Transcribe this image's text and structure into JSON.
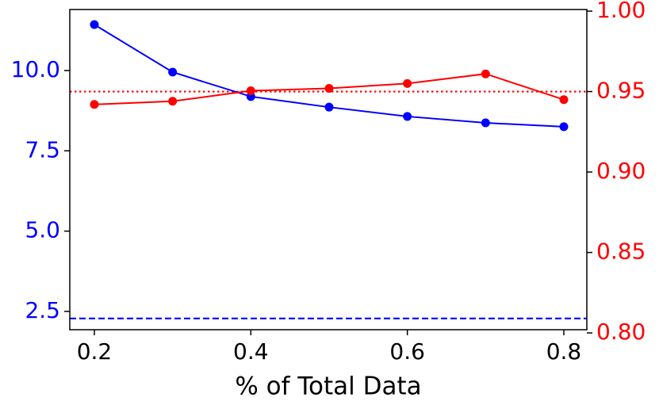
{
  "chart_data": {
    "type": "line",
    "xlabel": "% of Total Data",
    "x": [
      0.2,
      0.3,
      0.4,
      0.5,
      0.6,
      0.7,
      0.8
    ],
    "series": [
      {
        "color": "#0000ff",
        "values": [
          11.43,
          9.95,
          9.19,
          8.86,
          8.57,
          8.37,
          8.25
        ]
      },
      {
        "color": "#ff0000",
        "axis": "y2",
        "values": [
          0.942,
          0.944,
          0.9505,
          0.952,
          0.955,
          0.961,
          0.945
        ]
      }
    ],
    "reference_lines": [
      {
        "axis": "y",
        "value": 2.28,
        "color": "#0000ff",
        "style": "dashed"
      },
      {
        "axis": "y2",
        "value": 0.95,
        "color": "#ff0000",
        "style": "dotted"
      }
    ],
    "xlim": [
      0.1686,
      0.8294
    ],
    "xticks": [
      0.2,
      0.4,
      0.6,
      0.8
    ],
    "ylim": [
      1.93,
      11.9
    ],
    "yticks": [
      {
        "value": 2.5,
        "label": "2.5"
      },
      {
        "value": 5,
        "label": "5.0"
      },
      7.5,
      {
        "value": 10,
        "label": "10.0"
      }
    ],
    "y2lim": [
      0.802,
      1.001
    ],
    "y2ticks": [
      {
        "value": 0.8,
        "label": "0.80"
      },
      0.85,
      {
        "value": 0.9,
        "label": "0.90"
      },
      0.95,
      {
        "value": 1,
        "label": "1.00"
      }
    ],
    "y_color": "#0000ff",
    "y2_color": "#ff0000"
  }
}
